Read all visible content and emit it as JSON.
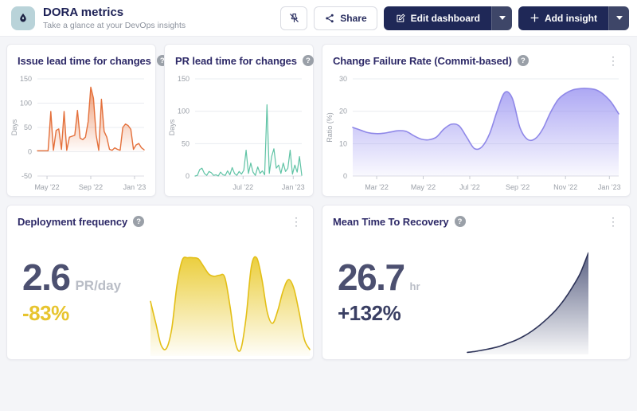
{
  "header": {
    "title": "DORA metrics",
    "subtitle": "Take a glance at your DevOps insights",
    "actions": {
      "share": "Share",
      "edit": "Edit dashboard",
      "add": "Add insight"
    }
  },
  "ui": {
    "help_glyph": "?",
    "kebab_glyph": "⋮"
  },
  "colors": {
    "brand_navy": "#1f2857",
    "title_indigo": "#2e2a68",
    "metric_gray_navy": "#4c5070",
    "delta_yellow": "#e7c42e",
    "delta_navy": "#3a3f63"
  },
  "cards": [
    {
      "title": "Issue lead time for changes"
    },
    {
      "title": "PR lead time for changes"
    },
    {
      "title": "Change Failure Rate (Commit-based)"
    },
    {
      "title": "Deployment frequency",
      "value": "2.6",
      "unit": "PR/day",
      "delta": "-83%",
      "delta_color": "#e7c42e"
    },
    {
      "title": "Mean Time To Recovery",
      "value": "26.7",
      "unit": "hr",
      "delta": "+132%",
      "delta_color": "#3a3f63"
    }
  ],
  "chart_data": [
    {
      "type": "area",
      "title": "Issue lead time for changes",
      "xlabel": "",
      "ylabel": "Days",
      "ylim": [
        -50,
        150
      ],
      "yticks": [
        -50,
        0,
        50,
        100,
        150
      ],
      "xticks": [
        {
          "label": "May '22",
          "pos": 0.09
        },
        {
          "label": "Sep '22",
          "pos": 0.5
        },
        {
          "label": "Jan '23",
          "pos": 0.91
        }
      ],
      "values": [
        2,
        2,
        2,
        2,
        2,
        83,
        3,
        44,
        47,
        5,
        83,
        3,
        30,
        32,
        34,
        85,
        28,
        25,
        30,
        62,
        133,
        110,
        35,
        3,
        108,
        42,
        30,
        5,
        3,
        8,
        5,
        3,
        50,
        57,
        54,
        46,
        5,
        14,
        17,
        8,
        4
      ],
      "smooth": false,
      "stroke": 1.4,
      "color": "#e4703b",
      "fill_from": "rgba(232,116,62,0.7)",
      "fill_to": "rgba(232,116,62,0.02)"
    },
    {
      "type": "line",
      "title": "PR lead time for changes",
      "xlabel": "",
      "ylabel": "Days",
      "ylim": [
        0,
        150
      ],
      "yticks": [
        0,
        50,
        100,
        150
      ],
      "xticks": [
        {
          "label": "Jul '22",
          "pos": 0.45
        },
        {
          "label": "Jan '23",
          "pos": 0.92
        }
      ],
      "values": [
        0,
        1,
        10,
        12,
        4,
        1,
        7,
        5,
        1,
        2,
        0,
        6,
        2,
        1,
        8,
        2,
        13,
        4,
        1,
        7,
        3,
        9,
        40,
        4,
        20,
        6,
        1,
        14,
        4,
        8,
        2,
        110,
        4,
        30,
        42,
        12,
        17,
        4,
        20,
        7,
        12,
        40,
        3,
        17,
        6,
        30,
        1
      ],
      "smooth": false,
      "stroke": 1.2,
      "color": "#5fc3a5",
      "fill_from": "rgba(95,195,165,0.15)",
      "fill_to": "rgba(95,195,165,0)"
    },
    {
      "type": "area",
      "title": "Change Failure Rate (Commit-based)",
      "xlabel": "",
      "ylabel": "Ratio (%)",
      "ylim": [
        0,
        30
      ],
      "yticks": [
        0,
        10,
        20,
        30
      ],
      "xticks": [
        {
          "label": "Mar '22",
          "pos": 0.09
        },
        {
          "label": "May '22",
          "pos": 0.265
        },
        {
          "label": "Jul '22",
          "pos": 0.44
        },
        {
          "label": "Sep '22",
          "pos": 0.62
        },
        {
          "label": "Nov '22",
          "pos": 0.8
        },
        {
          "label": "Jan '23",
          "pos": 0.965
        }
      ],
      "values": [
        15,
        14.2,
        13.4,
        13.1,
        13.2,
        13.6,
        14,
        13.8,
        12.5,
        11.4,
        11.2,
        12,
        14.5,
        16,
        15.5,
        12,
        8.5,
        9,
        13,
        20,
        25.8,
        24,
        15,
        11.3,
        11.5,
        14.5,
        19.5,
        23.5,
        25.5,
        26.6,
        27,
        27,
        26.6,
        25.2,
        22.8,
        19.2
      ],
      "smooth": true,
      "stroke": 1.6,
      "color": "#8f88e8",
      "fill_from": "rgba(146,139,240,0.75)",
      "fill_to": "rgba(146,139,240,0.05)"
    },
    {
      "type": "area",
      "title": "Deployment frequency",
      "xlabel": "",
      "ylabel": "",
      "ylim": [
        0,
        1.05
      ],
      "values": [
        0.5,
        0.3,
        0.1,
        0.07,
        0.25,
        0.65,
        0.88,
        0.9,
        0.9,
        0.89,
        0.82,
        0.75,
        0.73,
        0.74,
        0.72,
        0.45,
        0.12,
        0.06,
        0.35,
        0.82,
        0.9,
        0.7,
        0.4,
        0.3,
        0.42,
        0.6,
        0.7,
        0.62,
        0.4,
        0.15,
        0.06
      ],
      "smooth": true,
      "stroke": 1.6,
      "pad_top": 14,
      "pad_bottom": 4,
      "pad_left": 4,
      "pad_right": 2,
      "color": "#e3bf17",
      "fill_from": "rgba(233,201,40,0.9)",
      "fill_to": "rgba(233,201,40,0.03)"
    },
    {
      "type": "area",
      "title": "Mean Time To Recovery",
      "xlabel": "",
      "ylabel": "",
      "ylim": [
        0,
        1.05
      ],
      "values": [
        0.02,
        0.03,
        0.045,
        0.06,
        0.08,
        0.11,
        0.14,
        0.18,
        0.23,
        0.29,
        0.36,
        0.44,
        0.54,
        0.66,
        0.8,
        1.0
      ],
      "smooth": true,
      "stroke": 1.6,
      "pad_top": 22,
      "pad_bottom": 6,
      "pad_left": 6,
      "pad_right": 0,
      "color": "#2e3459",
      "fill_from": "rgba(62,70,110,0.85)",
      "fill_to": "rgba(62,70,110,0.04)"
    }
  ]
}
